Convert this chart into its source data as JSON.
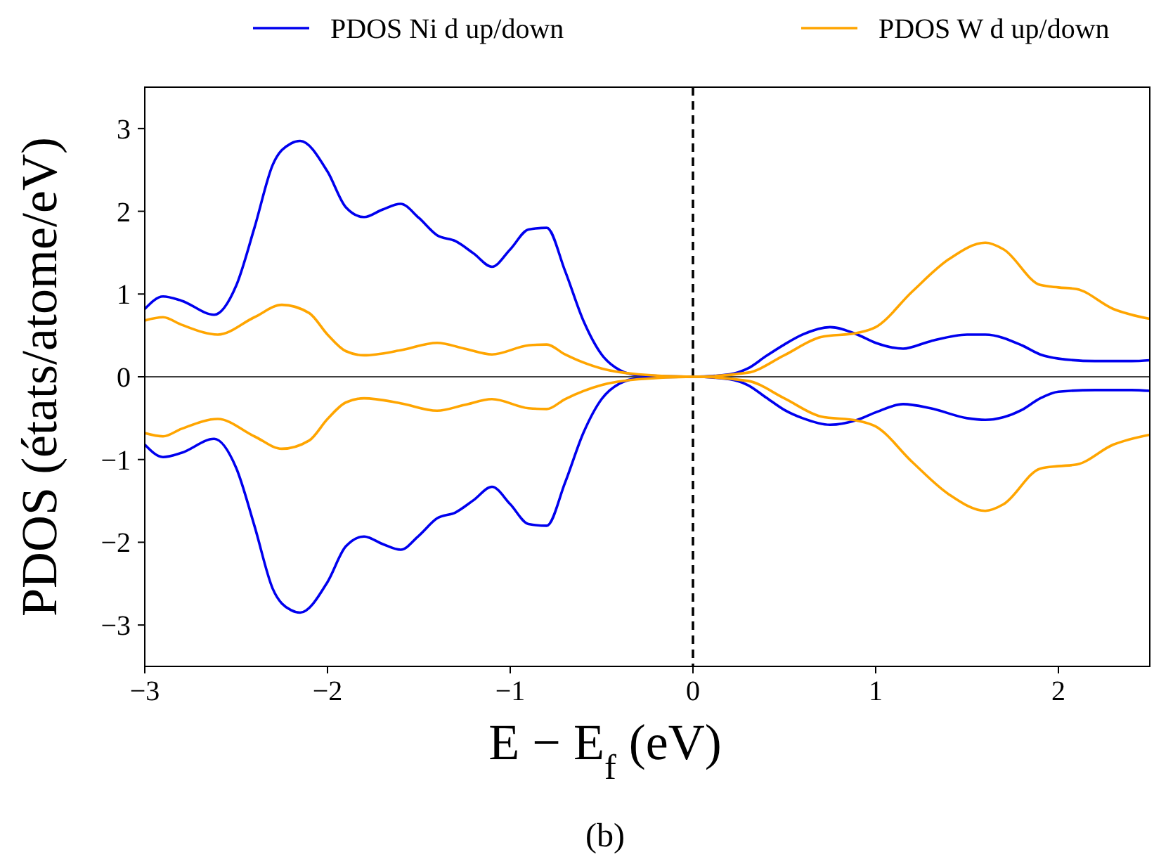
{
  "chart_data": {
    "type": "line",
    "xlabel": "E − E$_{f}$ (eV)",
    "ylabel": "PDOS (états/atome/eV)",
    "annotations": [
      "(b)"
    ],
    "xlim": [
      -3,
      2.5
    ],
    "ylim": [
      -3.5,
      3.5
    ],
    "xticks": [
      {
        "value": -3,
        "label": "−3"
      },
      {
        "value": -2,
        "label": "−2"
      },
      {
        "value": -1,
        "label": "−1"
      },
      0,
      1,
      2
    ],
    "yticks": [
      {
        "value": -3,
        "label": "−3"
      },
      {
        "value": -2,
        "label": "−2"
      },
      {
        "value": -1,
        "label": "−1"
      },
      0,
      1,
      2,
      3
    ],
    "grid": false,
    "legend": "top",
    "line_style": "solid",
    "ref_lines": [
      {
        "axis": "y",
        "value": 0,
        "color": "#000000",
        "line_style": "solid"
      },
      {
        "axis": "x",
        "value": 0,
        "color": "#000000",
        "line_style": "dashed"
      }
    ],
    "series": [
      {
        "name": "PDOS Ni d up/down",
        "color": "#0000ee",
        "x": [
          -3,
          -2.9,
          -2.8,
          -2.62,
          -2.5,
          -2.4,
          -2.3,
          -2.2,
          -2.15,
          -2,
          -1.9,
          -1.8,
          -1.7,
          -1.6,
          -1.5,
          -1.4,
          -1.3,
          -1.2,
          -1.1,
          -1,
          -0.9,
          -0.8,
          -0.7,
          -0.6,
          -0.5,
          -0.4,
          -0.3,
          0,
          0.2,
          0.3,
          0.4,
          0.5,
          0.6,
          0.75,
          0.9,
          1,
          1.15,
          1.3,
          1.5,
          1.6,
          1.8,
          1.9,
          2,
          2.2,
          2.4,
          2.5
        ],
        "values": [
          0.82,
          0.97,
          0.92,
          0.75,
          1.1,
          1.8,
          2.56,
          2.82,
          2.85,
          2.48,
          2.05,
          1.93,
          2.02,
          2.09,
          1.92,
          1.71,
          1.64,
          1.49,
          1.33,
          1.54,
          1.78,
          1.8,
          1.28,
          0.68,
          0.27,
          0.08,
          0.02,
          0,
          0.03,
          0.1,
          0.25,
          0.39,
          0.51,
          0.6,
          0.51,
          0.41,
          0.34,
          0.43,
          0.51,
          0.51,
          0.38,
          0.27,
          0.22,
          0.19,
          0.19,
          0.2
        ]
      },
      {
        "color": "#0000ee",
        "x": [
          -3,
          -2.9,
          -2.8,
          -2.62,
          -2.5,
          -2.4,
          -2.3,
          -2.2,
          -2.15,
          -2,
          -1.9,
          -1.8,
          -1.7,
          -1.6,
          -1.5,
          -1.4,
          -1.3,
          -1.2,
          -1.1,
          -1,
          -0.9,
          -0.8,
          -0.7,
          -0.6,
          -0.5,
          -0.4,
          -0.3,
          0,
          0.2,
          0.3,
          0.4,
          0.5,
          0.6,
          0.75,
          0.9,
          1,
          1.15,
          1.3,
          1.5,
          1.6,
          1.8,
          1.9,
          2,
          2.2,
          2.4,
          2.5
        ],
        "values": [
          -0.82,
          -0.97,
          -0.92,
          -0.75,
          -1.1,
          -1.8,
          -2.56,
          -2.82,
          -2.85,
          -2.48,
          -2.05,
          -1.93,
          -2.02,
          -2.09,
          -1.92,
          -1.71,
          -1.64,
          -1.49,
          -1.33,
          -1.54,
          -1.78,
          -1.8,
          -1.28,
          -0.68,
          -0.27,
          -0.08,
          -0.02,
          0,
          -0.03,
          -0.1,
          -0.25,
          -0.4,
          -0.5,
          -0.58,
          -0.52,
          -0.43,
          -0.33,
          -0.38,
          -0.5,
          -0.52,
          -0.4,
          -0.26,
          -0.18,
          -0.16,
          -0.16,
          -0.17
        ]
      },
      {
        "name": "PDOS W d up/down",
        "color": "#ffa500",
        "x": [
          -3,
          -2.9,
          -2.8,
          -2.6,
          -2.4,
          -2.25,
          -2.1,
          -2,
          -1.9,
          -1.8,
          -1.6,
          -1.4,
          -1.25,
          -1.1,
          -0.9,
          -0.8,
          -0.7,
          -0.5,
          -0.3,
          0,
          0.3,
          0.5,
          0.7,
          0.9,
          1,
          1.2,
          1.4,
          1.6,
          1.7,
          1.9,
          2,
          2.1,
          2.3,
          2.5
        ],
        "values": [
          0.68,
          0.72,
          0.63,
          0.51,
          0.72,
          0.87,
          0.77,
          0.51,
          0.31,
          0.26,
          0.32,
          0.41,
          0.34,
          0.27,
          0.38,
          0.39,
          0.27,
          0.1,
          0.03,
          0,
          0.05,
          0.26,
          0.48,
          0.53,
          0.6,
          1.03,
          1.42,
          1.62,
          1.54,
          1.11,
          1.08,
          1.06,
          0.82,
          0.7
        ]
      },
      {
        "color": "#ffa500",
        "x": [
          -3,
          -2.9,
          -2.8,
          -2.6,
          -2.4,
          -2.25,
          -2.1,
          -2,
          -1.9,
          -1.8,
          -1.6,
          -1.4,
          -1.25,
          -1.1,
          -0.9,
          -0.8,
          -0.7,
          -0.5,
          -0.3,
          0,
          0.3,
          0.5,
          0.7,
          0.9,
          1,
          1.2,
          1.4,
          1.6,
          1.7,
          1.9,
          2,
          2.1,
          2.3,
          2.5
        ],
        "values": [
          -0.68,
          -0.72,
          -0.63,
          -0.51,
          -0.72,
          -0.87,
          -0.77,
          -0.51,
          -0.31,
          -0.26,
          -0.32,
          -0.41,
          -0.34,
          -0.27,
          -0.38,
          -0.39,
          -0.27,
          -0.1,
          -0.03,
          0,
          -0.05,
          -0.26,
          -0.48,
          -0.53,
          -0.6,
          -1.03,
          -1.42,
          -1.62,
          -1.54,
          -1.11,
          -1.08,
          -1.06,
          -0.82,
          -0.7
        ]
      }
    ]
  }
}
